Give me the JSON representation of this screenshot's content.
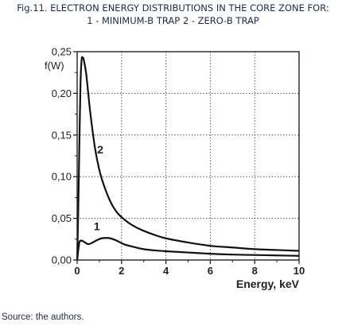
{
  "caption": {
    "line1": "Fig.11. ELECTRON ENERGY DISTRIBUTIONS IN THE CORE ZONE FOR:",
    "line2": "1 - MINIMUM-B TRAP 2 - ZERO-B TRAP"
  },
  "source": "Source: the authors.",
  "chart_data": {
    "type": "line",
    "title": "",
    "xlabel": "Energy, keV",
    "ylabel": "f(W)",
    "xlim": [
      0,
      10
    ],
    "ylim": [
      0,
      0.25
    ],
    "xticks": [
      "0",
      "2",
      "4",
      "6",
      "8",
      "10"
    ],
    "yticks": [
      "0,00",
      "0,05",
      "0,10",
      "0,15",
      "0,20",
      "0,25"
    ],
    "grid": true,
    "series": [
      {
        "name": "1",
        "x": [
          0,
          0.1,
          0.2,
          0.3,
          0.5,
          0.7,
          0.9,
          1.1,
          1.3,
          1.5,
          1.8,
          2.1,
          2.5,
          3,
          3.5,
          4,
          5,
          6,
          7,
          8,
          9,
          10
        ],
        "y": [
          0,
          0.021,
          0.023,
          0.022,
          0.019,
          0.021,
          0.024,
          0.026,
          0.0265,
          0.026,
          0.023,
          0.019,
          0.016,
          0.013,
          0.0115,
          0.0105,
          0.009,
          0.0075,
          0.0065,
          0.006,
          0.0055,
          0.005
        ]
      },
      {
        "name": "2",
        "x": [
          0,
          0.05,
          0.1,
          0.15,
          0.2,
          0.25,
          0.3,
          0.4,
          0.5,
          0.6,
          0.8,
          1.0,
          1.2,
          1.5,
          1.8,
          2.2,
          2.6,
          3,
          3.5,
          4,
          5,
          6,
          7,
          8,
          9,
          10
        ],
        "y": [
          0,
          0.06,
          0.14,
          0.21,
          0.24,
          0.243,
          0.24,
          0.225,
          0.2,
          0.175,
          0.135,
          0.108,
          0.09,
          0.07,
          0.057,
          0.047,
          0.04,
          0.035,
          0.03,
          0.026,
          0.021,
          0.017,
          0.015,
          0.013,
          0.012,
          0.011
        ]
      }
    ],
    "annotations": [
      "1",
      "2"
    ]
  }
}
